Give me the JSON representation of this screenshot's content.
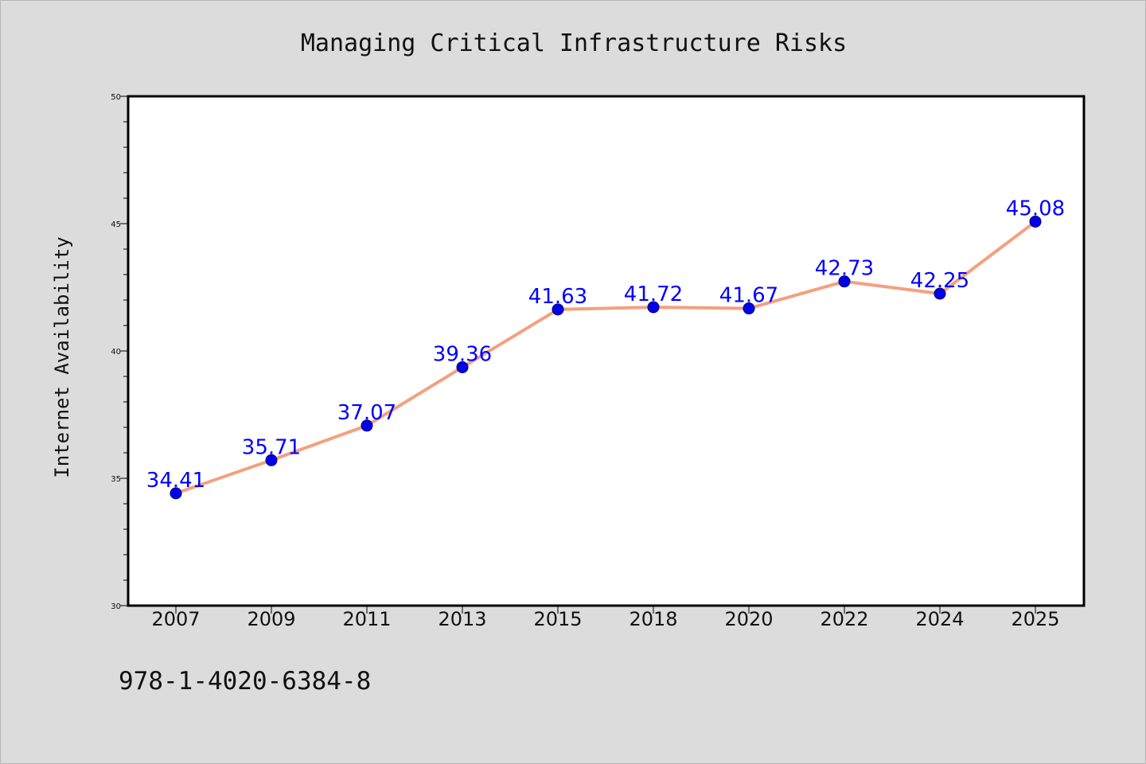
{
  "chart_data": {
    "type": "line",
    "title": "Managing Critical Infrastructure Risks",
    "xlabel": "",
    "ylabel": "Internet Availability",
    "categories": [
      "2007",
      "2009",
      "2011",
      "2013",
      "2015",
      "2018",
      "2020",
      "2022",
      "2024",
      "2025"
    ],
    "series": [
      {
        "values": [
          34.41,
          35.71,
          37.07,
          39.36,
          41.63,
          41.72,
          41.67,
          42.73,
          42.25,
          45.08
        ]
      }
    ],
    "data_labels": [
      "34.41",
      "35.71",
      "37.07",
      "39.36",
      "41.63",
      "41.72",
      "41.67",
      "42.73",
      "42.25",
      "45.08"
    ],
    "ylim": [
      30,
      50
    ],
    "yticks": [
      "30",
      "35",
      "40",
      "45",
      "50"
    ],
    "grid": false,
    "legend": "none",
    "colors": {
      "line": "#f4a07e",
      "marker": "#0000ee",
      "label": "#0000ff",
      "plot_background": "#ffffff",
      "page_background": "#dcdcdc"
    }
  },
  "footnote": "978-1-4020-6384-8"
}
